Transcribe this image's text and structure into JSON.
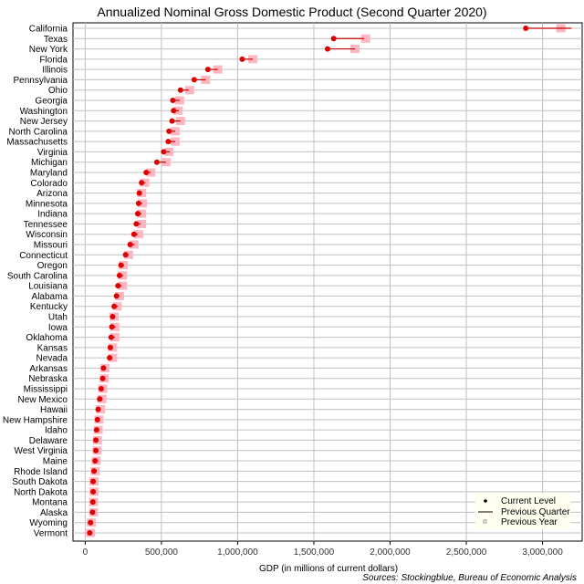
{
  "chart_data": {
    "type": "scatter",
    "title": "Annualized Nominal Gross Domestic Product (Second Quarter 2020)",
    "xlabel": "GDP (in millions of current dollars)",
    "ylabel": "",
    "xlim": [
      -80000,
      3260000
    ],
    "xticks": [
      0,
      500000,
      1000000,
      1500000,
      2000000,
      2500000,
      3000000
    ],
    "xtick_labels": [
      "0",
      "500,000",
      "1,000,000",
      "1,500,000",
      "2,000,000",
      "2,500,000",
      "3,000,000"
    ],
    "grid": true,
    "legend_position": "bottom-right",
    "legend": [
      "Current Level",
      "Previous Quarter",
      "Previous Year"
    ],
    "source": "Sources: Stockingblue, Bureau of Economic Analysis",
    "colors": {
      "current": "#dd0000",
      "line": "#cc0000",
      "previous_year": "#ffb6c1",
      "legend_bg": "#fffff0",
      "grid": "#c0c0c0"
    },
    "categories": [
      "California",
      "Texas",
      "New York",
      "Florida",
      "Illinois",
      "Pennsylvania",
      "Ohio",
      "Georgia",
      "Washington",
      "New Jersey",
      "North Carolina",
      "Massachusetts",
      "Virginia",
      "Michigan",
      "Maryland",
      "Colorado",
      "Arizona",
      "Minnesota",
      "Indiana",
      "Tennessee",
      "Wisconsin",
      "Missouri",
      "Connecticut",
      "Oregon",
      "South Carolina",
      "Louisiana",
      "Alabama",
      "Kentucky",
      "Utah",
      "Iowa",
      "Oklahoma",
      "Kansas",
      "Nevada",
      "Arkansas",
      "Nebraska",
      "Mississippi",
      "New Mexico",
      "Hawaii",
      "New Hampshire",
      "Idaho",
      "Delaware",
      "West Virginia",
      "Maine",
      "Rhode Island",
      "South Dakota",
      "North Dakota",
      "Montana",
      "Alaska",
      "Wyoming",
      "Vermont"
    ],
    "series": [
      {
        "name": "Current Level",
        "values": [
          2890000,
          1630000,
          1590000,
          1030000,
          805000,
          715000,
          625000,
          575000,
          580000,
          570000,
          550000,
          545000,
          515000,
          470000,
          400000,
          370000,
          355000,
          350000,
          345000,
          335000,
          320000,
          295000,
          265000,
          235000,
          225000,
          215000,
          205000,
          190000,
          180000,
          175000,
          170000,
          165000,
          160000,
          120000,
          115000,
          105000,
          95000,
          85000,
          80000,
          75000,
          70000,
          70000,
          65000,
          58000,
          52000,
          52000,
          50000,
          48000,
          35000,
          30000
        ]
      },
      {
        "name": "Previous Quarter",
        "values": [
          3190000,
          1830000,
          1770000,
          1100000,
          870000,
          790000,
          680000,
          620000,
          615000,
          625000,
          590000,
          590000,
          555000,
          530000,
          430000,
          395000,
          370000,
          375000,
          370000,
          365000,
          345000,
          325000,
          285000,
          255000,
          250000,
          240000,
          225000,
          215000,
          195000,
          200000,
          195000,
          180000,
          180000,
          130000,
          130000,
          120000,
          115000,
          95000,
          90000,
          85000,
          80000,
          78000,
          72000,
          66000,
          58000,
          60000,
          56000,
          55000,
          42000,
          35000
        ]
      },
      {
        "name": "Previous Year",
        "values": [
          3120000,
          1840000,
          1770000,
          1100000,
          870000,
          790000,
          685000,
          620000,
          610000,
          625000,
          590000,
          590000,
          550000,
          530000,
          430000,
          390000,
          370000,
          375000,
          370000,
          370000,
          350000,
          320000,
          285000,
          250000,
          245000,
          245000,
          225000,
          210000,
          190000,
          195000,
          195000,
          180000,
          180000,
          130000,
          125000,
          115000,
          110000,
          100000,
          90000,
          85000,
          80000,
          78000,
          72000,
          65000,
          58000,
          58000,
          55000,
          55000,
          40000,
          35000
        ]
      }
    ]
  }
}
